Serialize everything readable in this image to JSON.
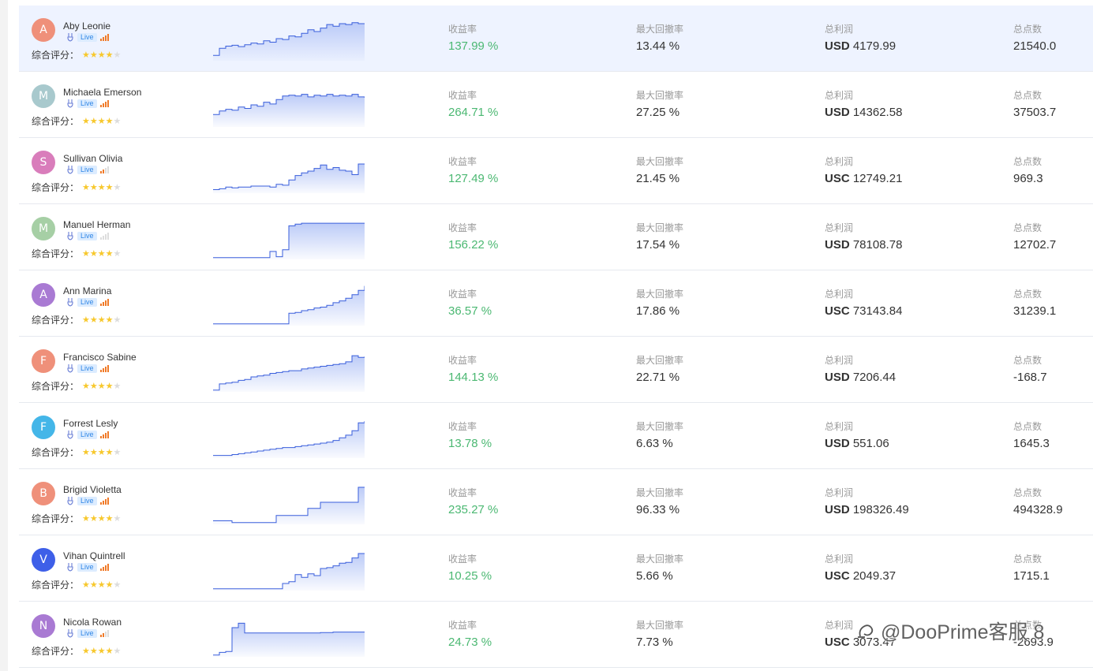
{
  "labels": {
    "rating": "综合评分：",
    "return_rate": "收益率",
    "max_drawdown": "最大回撤率",
    "total_profit": "总利润",
    "total_points": "总点数",
    "live": "Live"
  },
  "colors": {
    "active_row_bg": "#eef3ff",
    "return_green": "#4bb872",
    "spark_line": "#3a5fdc",
    "spark_fill": "#b8c8f7",
    "live_badge_bg": "#dcecff",
    "live_badge_text": "#2f86e6",
    "signal_on": "#f07a28",
    "star_on": "#f7c82d"
  },
  "watermark": {
    "icon": "zhihu-sign-icon",
    "text": "@DooPrime客服 8"
  },
  "traders": [
    {
      "initial": "A",
      "name": "Aby Leonie",
      "avatar_color": "#ef907a",
      "signal_level": 4,
      "stars": 4,
      "return": "137.99 %",
      "drawdown": "13.44 %",
      "currency": "USD",
      "profit": "4179.99",
      "points": "21540.0",
      "spark": [
        0.12,
        0.28,
        0.33,
        0.35,
        0.32,
        0.36,
        0.4,
        0.38,
        0.45,
        0.42,
        0.5,
        0.48,
        0.56,
        0.54,
        0.62,
        0.7,
        0.66,
        0.74,
        0.82,
        0.78,
        0.84,
        0.82,
        0.86,
        0.84,
        0.84
      ]
    },
    {
      "initial": "M",
      "name": "Michaela Emerson",
      "avatar_color": "#a8c9cd",
      "signal_level": 4,
      "stars": 4,
      "return": "264.71 %",
      "drawdown": "27.25 %",
      "currency": "USD",
      "profit": "14362.58",
      "points": "37503.7",
      "spark": [
        0.28,
        0.36,
        0.4,
        0.38,
        0.45,
        0.42,
        0.5,
        0.47,
        0.56,
        0.52,
        0.62,
        0.7,
        0.72,
        0.7,
        0.74,
        0.68,
        0.72,
        0.7,
        0.74,
        0.7,
        0.72,
        0.7,
        0.74,
        0.68,
        0.66
      ]
    },
    {
      "initial": "S",
      "name": "Sullivan Olivia",
      "avatar_color": "#d97dbb",
      "signal_level": 2,
      "stars": 4,
      "return": "127.49 %",
      "drawdown": "21.45 %",
      "currency": "USC",
      "profit": "12749.21",
      "points": "969.3",
      "spark": [
        0.08,
        0.1,
        0.14,
        0.12,
        0.14,
        0.14,
        0.16,
        0.16,
        0.16,
        0.14,
        0.2,
        0.18,
        0.3,
        0.4,
        0.46,
        0.5,
        0.56,
        0.64,
        0.54,
        0.58,
        0.52,
        0.5,
        0.42,
        0.66,
        0.66
      ]
    },
    {
      "initial": "M",
      "name": "Manuel Herman",
      "avatar_color": "#a6cfa5",
      "signal_level": 0,
      "stars": 4,
      "return": "156.22 %",
      "drawdown": "17.54 %",
      "currency": "USD",
      "profit": "78108.78",
      "points": "12702.7",
      "spark": [
        0.04,
        0.04,
        0.04,
        0.04,
        0.04,
        0.04,
        0.04,
        0.04,
        0.04,
        0.18,
        0.06,
        0.22,
        0.76,
        0.8,
        0.82,
        0.82,
        0.82,
        0.82,
        0.82,
        0.82,
        0.82,
        0.82,
        0.82,
        0.82,
        0.82
      ]
    },
    {
      "initial": "A",
      "name": "Ann Marina",
      "avatar_color": "#a97ad3",
      "signal_level": 4,
      "stars": 4,
      "return": "36.57 %",
      "drawdown": "17.86 %",
      "currency": "USC",
      "profit": "73143.84",
      "points": "31239.1",
      "spark": [
        0.04,
        0.04,
        0.04,
        0.04,
        0.04,
        0.04,
        0.04,
        0.04,
        0.04,
        0.04,
        0.04,
        0.04,
        0.28,
        0.3,
        0.34,
        0.36,
        0.4,
        0.42,
        0.46,
        0.52,
        0.56,
        0.62,
        0.7,
        0.8,
        0.9
      ]
    },
    {
      "initial": "F",
      "name": "Francisco Sabine",
      "avatar_color": "#ef907a",
      "signal_level": 4,
      "stars": 4,
      "return": "144.13 %",
      "drawdown": "22.71 %",
      "currency": "USD",
      "profit": "7206.44",
      "points": "-168.7",
      "spark": [
        0.04,
        0.18,
        0.2,
        0.22,
        0.26,
        0.28,
        0.34,
        0.36,
        0.38,
        0.42,
        0.44,
        0.46,
        0.48,
        0.48,
        0.52,
        0.54,
        0.56,
        0.58,
        0.6,
        0.62,
        0.64,
        0.68,
        0.82,
        0.78,
        0.8
      ]
    },
    {
      "initial": "F",
      "name": "Forrest Lesly",
      "avatar_color": "#44b6e8",
      "signal_level": 4,
      "stars": 4,
      "return": "13.78 %",
      "drawdown": "6.63 %",
      "currency": "USD",
      "profit": "551.06",
      "points": "1645.3",
      "spark": [
        0.06,
        0.06,
        0.06,
        0.08,
        0.1,
        0.12,
        0.14,
        0.16,
        0.18,
        0.2,
        0.22,
        0.24,
        0.24,
        0.26,
        0.28,
        0.3,
        0.32,
        0.34,
        0.36,
        0.4,
        0.46,
        0.52,
        0.62,
        0.8,
        0.84
      ]
    },
    {
      "initial": "B",
      "name": "Brigid Violetta",
      "avatar_color": "#ef907a",
      "signal_level": 4,
      "stars": 4,
      "return": "235.27 %",
      "drawdown": "96.33 %",
      "currency": "USD",
      "profit": "198326.49",
      "points": "494328.9",
      "spark": [
        0.08,
        0.08,
        0.08,
        0.04,
        0.04,
        0.04,
        0.04,
        0.04,
        0.04,
        0.04,
        0.2,
        0.2,
        0.2,
        0.2,
        0.2,
        0.36,
        0.36,
        0.5,
        0.5,
        0.5,
        0.5,
        0.5,
        0.5,
        0.84,
        0.84
      ]
    },
    {
      "initial": "V",
      "name": "Vihan Quintrell",
      "avatar_color": "#3e5fe8",
      "signal_level": 4,
      "stars": 4,
      "return": "10.25 %",
      "drawdown": "5.66 %",
      "currency": "USC",
      "profit": "2049.37",
      "points": "1715.1",
      "spark": [
        0.04,
        0.04,
        0.04,
        0.04,
        0.04,
        0.04,
        0.04,
        0.04,
        0.04,
        0.04,
        0.04,
        0.16,
        0.2,
        0.36,
        0.3,
        0.38,
        0.34,
        0.5,
        0.52,
        0.56,
        0.62,
        0.64,
        0.74,
        0.84,
        0.84
      ]
    },
    {
      "initial": "N",
      "name": "Nicola Rowan",
      "avatar_color": "#a97ad3",
      "signal_level": 2,
      "stars": 4,
      "return": "24.73 %",
      "drawdown": "7.73 %",
      "currency": "USC",
      "profit": "3073.47",
      "points": "-2693.9",
      "spark": [
        0.04,
        0.1,
        0.12,
        0.66,
        0.76,
        0.54,
        0.54,
        0.54,
        0.54,
        0.54,
        0.54,
        0.54,
        0.54,
        0.54,
        0.54,
        0.54,
        0.54,
        0.55,
        0.55,
        0.56,
        0.56,
        0.56,
        0.56,
        0.56,
        0.56
      ]
    }
  ]
}
